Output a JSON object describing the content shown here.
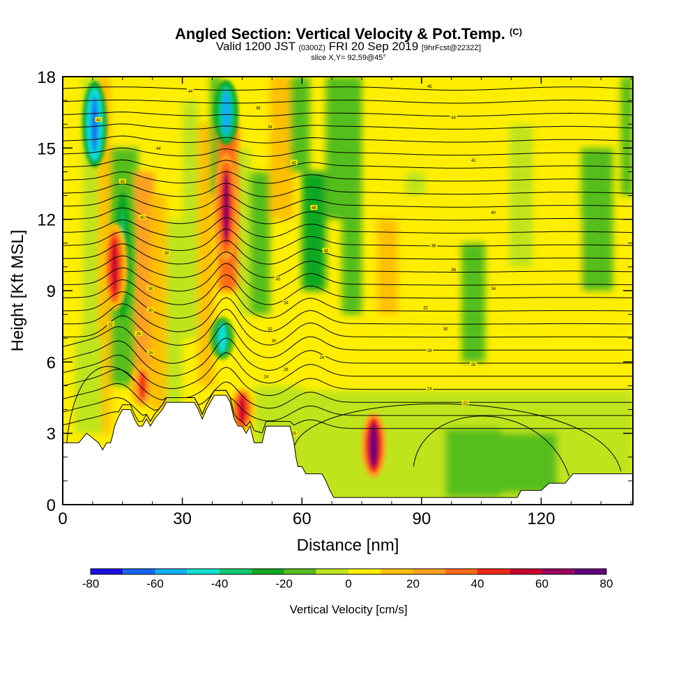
{
  "header": {
    "title": "Angled Section: Vertical Velocity & Pot.Temp.",
    "title_unit": "(C)",
    "valid_prefix": "Valid 1200 JST",
    "valid_utc": "(0300Z)",
    "valid_date": "FRI 20 Sep 2019",
    "forecast": "[9hrFcst@2232Z]",
    "slice": "slice X,Y= 92,59@45°"
  },
  "chart_data": {
    "type": "heatmap",
    "xlabel": "Distance [nm]",
    "ylabel": "Height [Kft MSL]",
    "xlim": [
      0,
      143
    ],
    "ylim": [
      0,
      18
    ],
    "x_ticks": [
      0,
      30,
      60,
      90,
      120
    ],
    "y_ticks": [
      0,
      3,
      6,
      9,
      12,
      15,
      18
    ],
    "colorbar": {
      "label": "Vertical Velocity [cm/s]",
      "ticks": [
        -80,
        -60,
        -40,
        -20,
        0,
        20,
        40,
        60,
        80
      ],
      "levels": [
        -80,
        -70,
        -60,
        -50,
        -40,
        -30,
        -20,
        -10,
        0,
        10,
        20,
        30,
        40,
        50,
        60,
        70,
        80
      ],
      "colors": [
        "#1a10e0",
        "#1566f0",
        "#10b2f0",
        "#10e0d0",
        "#10c870",
        "#10a820",
        "#54be1a",
        "#bfe41e",
        "#ffee00",
        "#ffc000",
        "#ffa020",
        "#ff6a18",
        "#f02818",
        "#c80030",
        "#9a0060",
        "#60007a"
      ]
    },
    "updraft_cores": [
      {
        "x": 8,
        "y_top": 18,
        "y_bottom": 14,
        "peak": -70
      },
      {
        "x": 15,
        "y_top": 14,
        "y_bottom": 7,
        "peak": -35
      },
      {
        "x": 41,
        "y_top": 18,
        "y_bottom": 15,
        "peak": -60
      },
      {
        "x": 40,
        "y_top": 8,
        "y_bottom": 6,
        "peak": -50
      },
      {
        "x": 13,
        "y_top": 12,
        "y_bottom": 8,
        "peak": 50
      },
      {
        "x": 41,
        "y_top": 15,
        "y_bottom": 10,
        "peak": 65
      },
      {
        "x": 78,
        "y_top": 4,
        "y_bottom": 1,
        "peak": 75
      },
      {
        "x": 45,
        "y_top": 5,
        "y_bottom": 3,
        "peak": 55
      },
      {
        "x": 20,
        "y_top": 6,
        "y_bottom": 4,
        "peak": 45
      }
    ],
    "terrain_kft": [
      [
        0,
        2.6
      ],
      [
        4,
        2.6
      ],
      [
        6,
        3.0
      ],
      [
        9,
        2.6
      ],
      [
        10,
        2.3
      ],
      [
        11,
        2.6
      ],
      [
        12,
        2.6
      ],
      [
        12.5,
        2.9
      ],
      [
        13,
        3.3
      ],
      [
        14,
        3.7
      ],
      [
        15,
        4.0
      ],
      [
        17,
        4.0
      ],
      [
        18,
        3.6
      ],
      [
        19,
        3.3
      ],
      [
        20,
        3.3
      ],
      [
        21,
        3.6
      ],
      [
        22,
        3.3
      ],
      [
        23,
        3.6
      ],
      [
        25,
        4.0
      ],
      [
        26,
        4.3
      ],
      [
        28,
        4.3
      ],
      [
        33,
        4.3
      ],
      [
        34,
        4.0
      ],
      [
        35,
        3.6
      ],
      [
        36,
        4.0
      ],
      [
        38,
        4.6
      ],
      [
        41,
        4.6
      ],
      [
        42,
        4.3
      ],
      [
        43,
        3.6
      ],
      [
        44,
        3.3
      ],
      [
        45,
        3.3
      ],
      [
        46,
        3.0
      ],
      [
        47,
        3.3
      ],
      [
        48,
        2.6
      ],
      [
        50,
        2.6
      ],
      [
        51,
        3.3
      ],
      [
        57,
        3.3
      ],
      [
        58,
        2.6
      ],
      [
        58.5,
        2.0
      ],
      [
        59,
        1.6
      ],
      [
        60,
        1.6
      ],
      [
        61,
        1.3
      ],
      [
        65,
        1.3
      ],
      [
        66,
        1.0
      ],
      [
        67,
        0.6
      ],
      [
        68,
        0.3
      ],
      [
        80,
        0.3
      ],
      [
        81,
        0.3
      ],
      [
        96,
        0.3
      ],
      [
        97,
        0.3
      ],
      [
        114,
        0.3
      ],
      [
        115,
        0.6
      ],
      [
        120,
        0.6
      ],
      [
        122,
        0.9
      ],
      [
        126,
        0.9
      ],
      [
        128,
        1.3
      ],
      [
        143,
        1.3
      ]
    ],
    "isentrope_labels": [
      {
        "x": 32,
        "y": 17.4,
        "text": "44"
      },
      {
        "x": 9,
        "y": 16.2,
        "text": "42"
      },
      {
        "x": 49,
        "y": 16.7,
        "text": "38"
      },
      {
        "x": 52,
        "y": 15.9,
        "text": "34"
      },
      {
        "x": 24,
        "y": 15.0,
        "text": "44"
      },
      {
        "x": 58,
        "y": 14.4,
        "text": "46"
      },
      {
        "x": 15,
        "y": 13.6,
        "text": "45"
      },
      {
        "x": 63,
        "y": 12.5,
        "text": "48"
      },
      {
        "x": 20,
        "y": 12.1,
        "text": "40"
      },
      {
        "x": 66,
        "y": 10.7,
        "text": "44"
      },
      {
        "x": 26,
        "y": 10.6,
        "text": "38"
      },
      {
        "x": 54,
        "y": 9.5,
        "text": "40"
      },
      {
        "x": 22,
        "y": 9.1,
        "text": "38"
      },
      {
        "x": 56,
        "y": 8.5,
        "text": "34"
      },
      {
        "x": 22,
        "y": 8.2,
        "text": "30"
      },
      {
        "x": 12,
        "y": 7.6,
        "text": "32"
      },
      {
        "x": 19,
        "y": 7.2,
        "text": "26"
      },
      {
        "x": 52,
        "y": 7.4,
        "text": "32"
      },
      {
        "x": 53,
        "y": 6.9,
        "text": "30"
      },
      {
        "x": 22,
        "y": 6.4,
        "text": "24"
      },
      {
        "x": 65,
        "y": 6.2,
        "text": "24"
      },
      {
        "x": 56,
        "y": 5.7,
        "text": "26"
      },
      {
        "x": 51,
        "y": 5.4,
        "text": "24"
      },
      {
        "x": 58,
        "y": 3.0,
        "text": "20"
      },
      {
        "x": 92,
        "y": 17.6,
        "text": "45"
      },
      {
        "x": 98,
        "y": 16.3,
        "text": "44"
      },
      {
        "x": 103,
        "y": 14.5,
        "text": "42"
      },
      {
        "x": 108,
        "y": 12.3,
        "text": "40"
      },
      {
        "x": 93,
        "y": 10.9,
        "text": "38"
      },
      {
        "x": 98,
        "y": 9.9,
        "text": "36"
      },
      {
        "x": 108,
        "y": 9.1,
        "text": "34"
      },
      {
        "x": 91,
        "y": 8.3,
        "text": "32"
      },
      {
        "x": 96,
        "y": 7.4,
        "text": "30"
      },
      {
        "x": 92,
        "y": 6.5,
        "text": "28"
      },
      {
        "x": 103,
        "y": 5.9,
        "text": "26"
      },
      {
        "x": 92,
        "y": 4.9,
        "text": "24"
      },
      {
        "x": 101,
        "y": 4.3,
        "text": "22"
      }
    ]
  }
}
